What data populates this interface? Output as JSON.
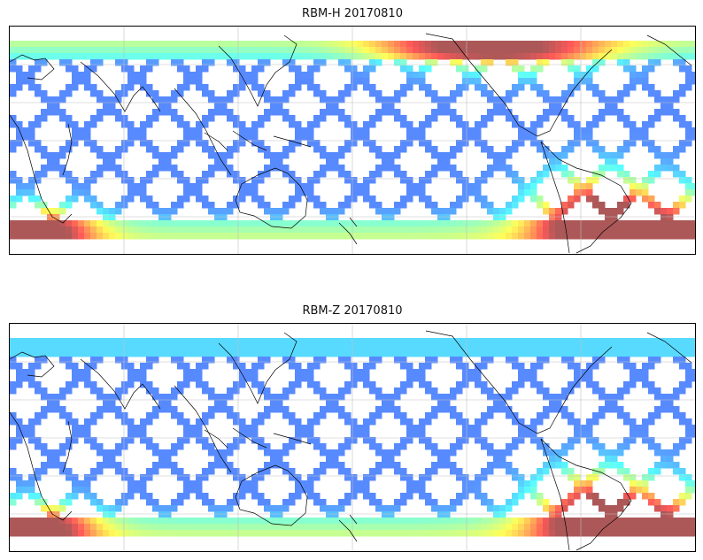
{
  "figure": {
    "panels": [
      {
        "title": "RBM-H 20170810",
        "colormap": "jet",
        "alpha": 0.65,
        "high_regions": [
          "south-atlantic-anomaly",
          "southern-high-latitudes",
          "northern-high-latitudes"
        ]
      },
      {
        "title": "RBM-Z 20170810",
        "colormap": "jet",
        "alpha": 0.65,
        "high_regions": [
          "south-atlantic-anomaly",
          "southern-high-latitudes"
        ]
      }
    ],
    "projection": "cylindrical",
    "gridlines": true,
    "coastlines": true,
    "colors": {
      "coast": "#000000",
      "grid": "#bfbfbf",
      "low": "#5c5cf2",
      "mid": "#58c8f5",
      "high": "#f45050"
    }
  }
}
